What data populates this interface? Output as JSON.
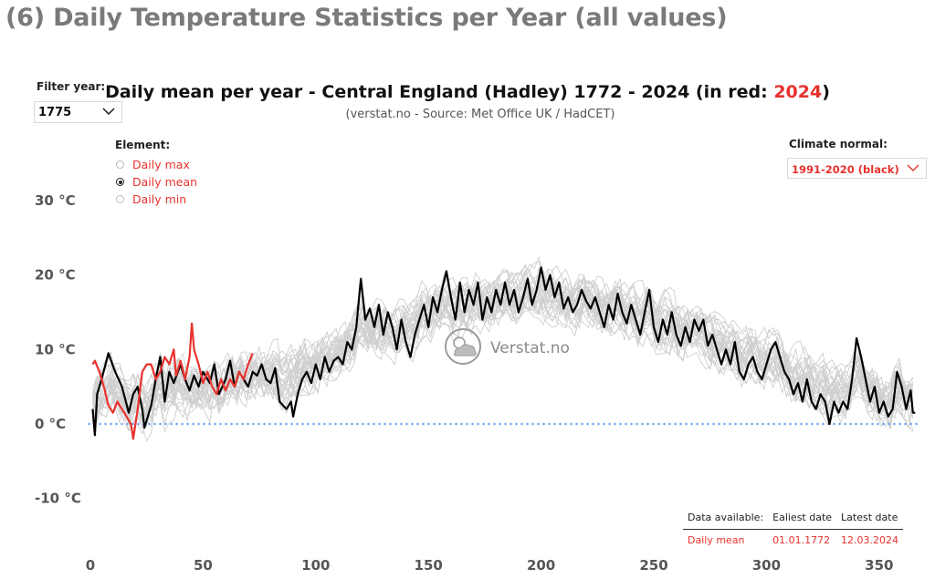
{
  "page": {
    "title": "(6) Daily Temperature Statistics per Year (all values)"
  },
  "filters": {
    "year_label": "Filter year:",
    "year_value": "1775",
    "element_label": "Element:",
    "elements": [
      {
        "label": "Daily max",
        "selected": false
      },
      {
        "label": "Daily mean",
        "selected": true
      },
      {
        "label": "Daily min",
        "selected": false
      }
    ],
    "normal_label": "Climate normal:",
    "normal_value": "1991-2020 (black)"
  },
  "chart_data": {
    "type": "line",
    "title_prefix": "Daily mean per year - Central England (Hadley) 1772 - 2024 (in red: ",
    "title_highlight": "2024",
    "title_suffix": ")",
    "subtitle": "(verstat.no - Source: Met Office UK / HadCET)",
    "xlabel": "",
    "ylabel": "",
    "xlim": [
      -5,
      372
    ],
    "ylim": [
      -11,
      32
    ],
    "x_ticks": [
      0,
      50,
      100,
      150,
      200,
      250,
      300,
      350
    ],
    "x_tick_labels": [
      "0",
      "50",
      "100",
      "150",
      "200",
      "250",
      "300",
      "350"
    ],
    "y_ticks": [
      -10,
      0,
      10,
      20,
      30
    ],
    "y_tick_labels": [
      "-10 °C",
      "0 °C",
      "10 °C",
      "20 °C",
      "30 °C"
    ],
    "reference_line": {
      "y": 0,
      "style": "dotted",
      "color": "#5b9bf0"
    },
    "grid": false,
    "watermark": "Verstat.no",
    "colors": {
      "all_years": "#cfcfcf",
      "normal": "#000000",
      "highlight": "#e8322d",
      "zero_line": "#5b9bf0"
    },
    "series": [
      {
        "role": "normal",
        "color": "#000000",
        "anchors": [
          [
            1,
            2
          ],
          [
            2,
            -1.5
          ],
          [
            3,
            4
          ],
          [
            5,
            6
          ],
          [
            8,
            9.5
          ],
          [
            11,
            7
          ],
          [
            14,
            5
          ],
          [
            17,
            1.5
          ],
          [
            19,
            4
          ],
          [
            21,
            5
          ],
          [
            23,
            2
          ],
          [
            24,
            -0.5
          ],
          [
            27,
            2.5
          ],
          [
            29,
            6
          ],
          [
            31,
            9
          ],
          [
            33,
            3
          ],
          [
            35,
            7
          ],
          [
            37,
            5.5
          ],
          [
            40,
            8
          ],
          [
            42,
            6
          ],
          [
            44,
            4.5
          ],
          [
            46,
            6.5
          ],
          [
            48,
            5
          ],
          [
            50,
            7
          ],
          [
            53,
            5.5
          ],
          [
            55,
            8
          ],
          [
            57,
            4
          ],
          [
            60,
            6
          ],
          [
            62,
            8.5
          ],
          [
            64,
            5
          ],
          [
            66,
            7
          ],
          [
            68,
            6
          ],
          [
            70,
            5
          ],
          [
            72,
            7
          ],
          [
            74,
            6.5
          ],
          [
            76,
            8
          ],
          [
            78,
            6
          ],
          [
            80,
            5.5
          ],
          [
            82,
            7.5
          ],
          [
            84,
            3
          ],
          [
            87,
            2
          ],
          [
            89,
            3
          ],
          [
            90,
            1
          ],
          [
            92,
            4
          ],
          [
            94,
            6
          ],
          [
            96,
            7
          ],
          [
            98,
            5.5
          ],
          [
            100,
            8
          ],
          [
            102,
            6
          ],
          [
            104,
            9
          ],
          [
            106,
            7
          ],
          [
            108,
            8.5
          ],
          [
            110,
            9
          ],
          [
            112,
            8
          ],
          [
            114,
            11
          ],
          [
            116,
            10
          ],
          [
            118,
            13
          ],
          [
            120,
            19.5
          ],
          [
            122,
            14
          ],
          [
            124,
            15.5
          ],
          [
            126,
            13
          ],
          [
            128,
            16
          ],
          [
            130,
            12
          ],
          [
            132,
            15
          ],
          [
            134,
            13
          ],
          [
            136,
            10
          ],
          [
            138,
            14
          ],
          [
            140,
            11
          ],
          [
            142,
            9
          ],
          [
            144,
            12
          ],
          [
            146,
            14
          ],
          [
            148,
            16
          ],
          [
            150,
            13
          ],
          [
            152,
            17
          ],
          [
            154,
            15
          ],
          [
            156,
            18
          ],
          [
            158,
            20.5
          ],
          [
            160,
            17
          ],
          [
            162,
            14
          ],
          [
            164,
            19
          ],
          [
            166,
            15
          ],
          [
            168,
            18
          ],
          [
            170,
            16
          ],
          [
            172,
            19
          ],
          [
            174,
            14
          ],
          [
            176,
            17
          ],
          [
            178,
            15
          ],
          [
            180,
            18
          ],
          [
            182,
            16
          ],
          [
            184,
            19
          ],
          [
            186,
            16
          ],
          [
            188,
            18
          ],
          [
            190,
            15
          ],
          [
            192,
            17
          ],
          [
            194,
            19.5
          ],
          [
            196,
            16
          ],
          [
            198,
            18
          ],
          [
            200,
            21
          ],
          [
            202,
            18
          ],
          [
            204,
            20
          ],
          [
            206,
            17
          ],
          [
            208,
            19
          ],
          [
            210,
            15.5
          ],
          [
            212,
            17
          ],
          [
            214,
            15
          ],
          [
            216,
            16
          ],
          [
            218,
            18
          ],
          [
            220,
            16.5
          ],
          [
            222,
            15.5
          ],
          [
            224,
            17
          ],
          [
            226,
            15
          ],
          [
            228,
            13
          ],
          [
            230,
            16
          ],
          [
            232,
            14
          ],
          [
            234,
            17.5
          ],
          [
            236,
            15
          ],
          [
            238,
            13.5
          ],
          [
            240,
            16
          ],
          [
            242,
            14
          ],
          [
            244,
            12
          ],
          [
            246,
            15
          ],
          [
            248,
            18
          ],
          [
            250,
            13
          ],
          [
            252,
            11
          ],
          [
            254,
            14
          ],
          [
            256,
            12
          ],
          [
            258,
            15
          ],
          [
            260,
            12
          ],
          [
            262,
            10.5
          ],
          [
            264,
            13
          ],
          [
            266,
            11
          ],
          [
            268,
            14
          ],
          [
            270,
            12.5
          ],
          [
            272,
            14
          ],
          [
            274,
            10.5
          ],
          [
            276,
            12
          ],
          [
            278,
            10
          ],
          [
            280,
            8
          ],
          [
            282,
            10
          ],
          [
            284,
            8
          ],
          [
            286,
            11
          ],
          [
            288,
            7
          ],
          [
            290,
            6
          ],
          [
            292,
            8
          ],
          [
            294,
            9
          ],
          [
            296,
            7
          ],
          [
            298,
            6
          ],
          [
            300,
            8
          ],
          [
            302,
            10
          ],
          [
            304,
            11
          ],
          [
            306,
            9
          ],
          [
            308,
            7
          ],
          [
            310,
            6
          ],
          [
            312,
            4
          ],
          [
            314,
            5.5
          ],
          [
            316,
            3
          ],
          [
            318,
            6
          ],
          [
            320,
            3
          ],
          [
            322,
            2
          ],
          [
            324,
            4
          ],
          [
            326,
            3
          ],
          [
            328,
            0
          ],
          [
            330,
            3
          ],
          [
            332,
            1.5
          ],
          [
            334,
            3
          ],
          [
            336,
            2
          ],
          [
            338,
            6
          ],
          [
            340,
            11.5
          ],
          [
            342,
            9
          ],
          [
            344,
            6
          ],
          [
            346,
            3
          ],
          [
            348,
            5
          ],
          [
            350,
            1.5
          ],
          [
            352,
            3
          ],
          [
            354,
            1
          ],
          [
            356,
            2
          ],
          [
            358,
            7
          ],
          [
            360,
            5
          ],
          [
            362,
            2
          ],
          [
            364,
            4.5
          ],
          [
            365,
            1.5
          ],
          [
            366,
            1.5
          ]
        ]
      },
      {
        "role": "highlight",
        "name": "2024",
        "color": "#e8322d",
        "anchors": [
          [
            1,
            8
          ],
          [
            2,
            8.5
          ],
          [
            4,
            7
          ],
          [
            6,
            5
          ],
          [
            8,
            2.5
          ],
          [
            10,
            1.5
          ],
          [
            12,
            3
          ],
          [
            14,
            2
          ],
          [
            16,
            1
          ],
          [
            18,
            0
          ],
          [
            19,
            -2
          ],
          [
            21,
            2
          ],
          [
            23,
            7
          ],
          [
            25,
            8
          ],
          [
            27,
            8
          ],
          [
            29,
            6
          ],
          [
            31,
            7
          ],
          [
            33,
            9
          ],
          [
            35,
            8
          ],
          [
            37,
            10
          ],
          [
            38,
            6.5
          ],
          [
            40,
            8.5
          ],
          [
            42,
            6
          ],
          [
            44,
            9
          ],
          [
            45,
            13.5
          ],
          [
            46,
            10
          ],
          [
            48,
            8
          ],
          [
            50,
            5.5
          ],
          [
            52,
            7
          ],
          [
            54,
            5
          ],
          [
            56,
            4
          ],
          [
            58,
            6
          ],
          [
            60,
            4.5
          ],
          [
            62,
            6
          ],
          [
            64,
            5
          ],
          [
            66,
            7
          ],
          [
            68,
            6
          ],
          [
            70,
            8
          ],
          [
            72,
            9.5
          ]
        ]
      }
    ]
  },
  "info_table": {
    "headers": [
      "Data available:",
      "Ealiest date",
      "Latest date"
    ],
    "row": [
      "Daily mean",
      "01.01.1772",
      "12.03.2024"
    ]
  }
}
